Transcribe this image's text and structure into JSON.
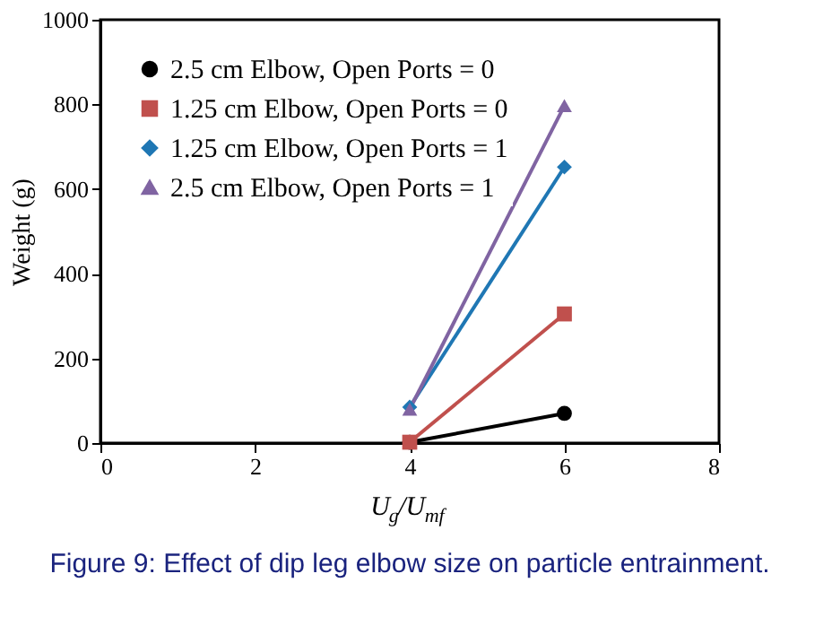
{
  "chart_data": {
    "type": "line",
    "xlabel": "U$_{g}$/U$_{mf}$",
    "ylabel": "Weight (g)",
    "annotations": [
      "Figure 9: Effect of dip leg elbow size on particle entrainment."
    ],
    "x": [
      4,
      6
    ],
    "xlim": [
      0,
      8
    ],
    "xticks": [
      0,
      2,
      4,
      6,
      8
    ],
    "ylim": [
      0,
      1000
    ],
    "yticks": [
      0,
      200,
      400,
      600,
      800,
      1000
    ],
    "grid": false,
    "legend": "top left",
    "line_style": "solid",
    "series": [
      {
        "name": "2.5 cm Elbow, Open Ports = 0",
        "color": "#000000",
        "marker": "circle",
        "values": [
          2,
          70
        ]
      },
      {
        "name": "1.25 cm Elbow, Open Ports = 0",
        "color": "#c0504d",
        "marker": "square",
        "values": [
          2,
          305
        ]
      },
      {
        "name": "1.25 cm Elbow, Open Ports = 1",
        "color": "#1f77b4",
        "marker": "diamond",
        "values": [
          85,
          652
        ]
      },
      {
        "name": "2.5 cm Elbow, Open Ports = 1",
        "color": "#8064a2",
        "marker": "triangle",
        "values": [
          80,
          797
        ]
      }
    ]
  }
}
